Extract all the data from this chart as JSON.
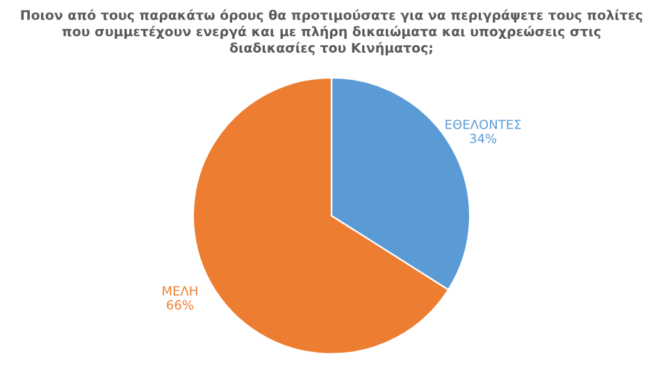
{
  "chart_data": {
    "type": "pie",
    "title": "Ποιον από τους παρακάτω όρους θα προτιμούσατε για να περιγράψετε τους πολίτες\nπου συμμετέχουν ενεργά και με πλήρη δικαιώματα και υποχρεώσεις στις\nδιαδικασίες του Κινήματος;",
    "categories": [
      "ΕΘΕΛΟΝΤΕΣ",
      "ΜΕΛΗ"
    ],
    "values": [
      34,
      66
    ],
    "colors": [
      "#5b9bd5",
      "#ed7d31"
    ],
    "value_labels": [
      "34%",
      "66%"
    ]
  }
}
